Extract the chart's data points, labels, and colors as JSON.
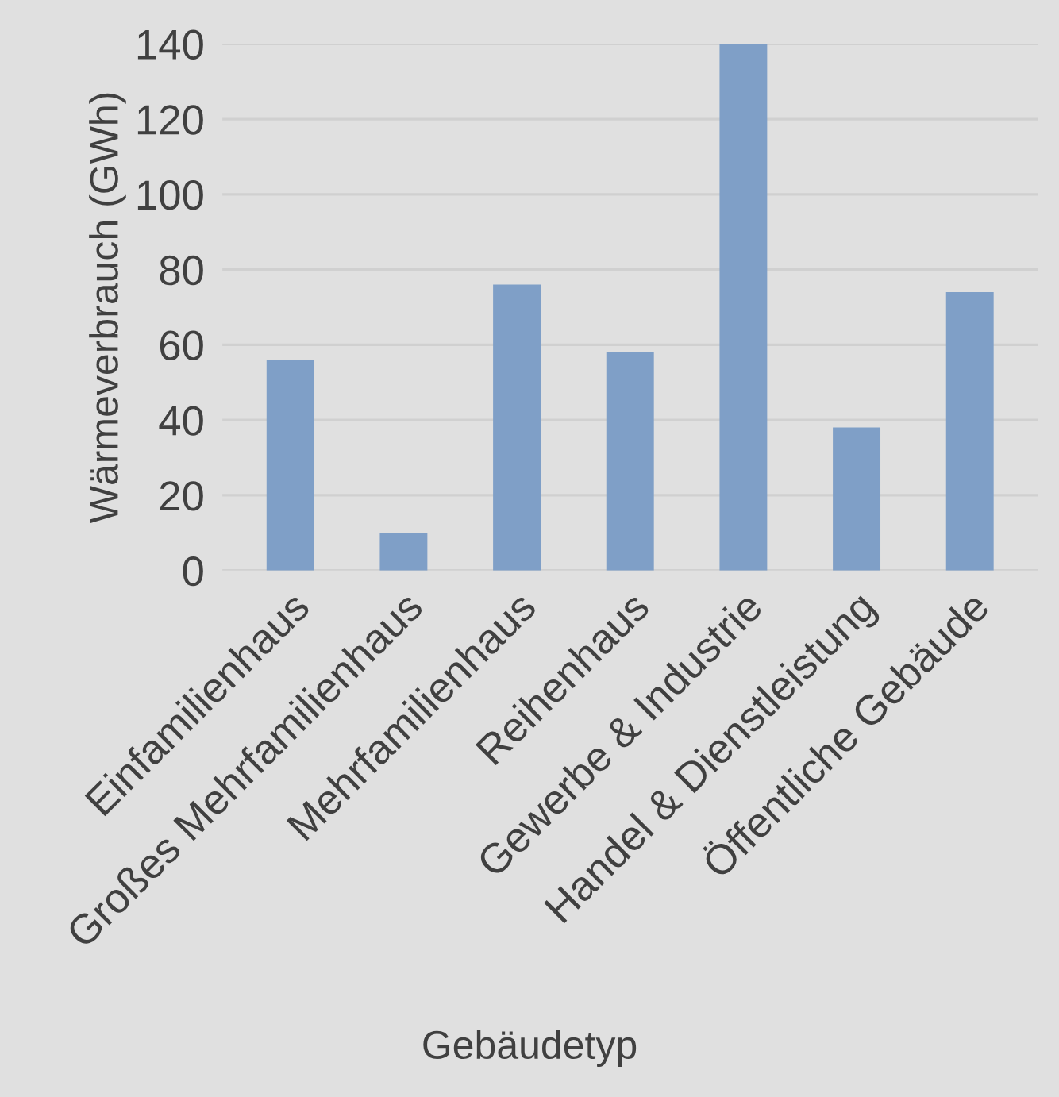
{
  "chart_data": {
    "type": "bar",
    "xlabel": "Gebäudetyp",
    "ylabel": "Wärmeverbrauch (GWh)",
    "categories": [
      "Einfamilienhaus",
      "Großes Mehrfamilienhaus",
      "Mehrfamilienhaus",
      "Reihenhaus",
      "Gewerbe & Industrie",
      "Handel & Dienstleistung",
      "Öffentliche Gebäude"
    ],
    "values": [
      56,
      10,
      76,
      58,
      140,
      38,
      74
    ],
    "color": "#7f9fc7",
    "ylim": [
      0,
      140
    ],
    "yticks": [
      0,
      20,
      40,
      60,
      80,
      100,
      120,
      140
    ],
    "grid": "y"
  }
}
